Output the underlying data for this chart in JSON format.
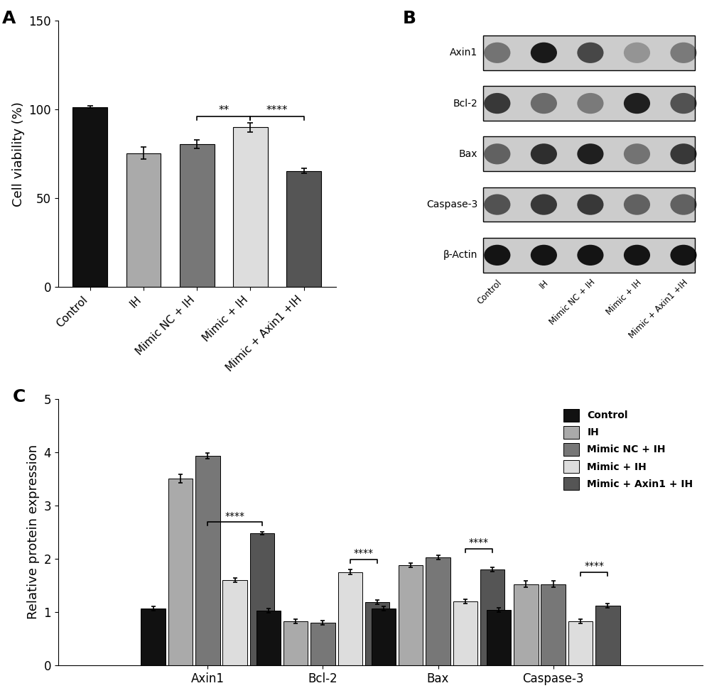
{
  "panel_A": {
    "categories": [
      "Control",
      "IH",
      "Mimic NC + IH",
      "Mimic + IH",
      "Mimic + Axin1 +IH"
    ],
    "values": [
      101.5,
      75.5,
      80.5,
      90.0,
      65.5
    ],
    "errors": [
      0.5,
      3.5,
      2.5,
      2.5,
      1.5
    ],
    "colors": [
      "#111111",
      "#aaaaaa",
      "#777777",
      "#dddddd",
      "#555555"
    ],
    "ylabel": "Cell viability (%)",
    "ylim": [
      0,
      150
    ],
    "yticks": [
      0,
      50,
      100,
      150
    ]
  },
  "panel_B": {
    "labels": [
      "Axin1",
      "Bcl-2",
      "Bax",
      "Caspase-3",
      "β-Actin"
    ],
    "x_labels": [
      "Control",
      "IH",
      "Mimic NC + IH",
      "Mimic + IH",
      "Mimic + Axin1 +IH"
    ],
    "intensities": {
      "Axin1": [
        0.55,
        0.9,
        0.72,
        0.42,
        0.52
      ],
      "Bcl-2": [
        0.78,
        0.58,
        0.52,
        0.88,
        0.68
      ],
      "Bax": [
        0.62,
        0.82,
        0.88,
        0.55,
        0.78
      ],
      "Caspase-3": [
        0.68,
        0.78,
        0.78,
        0.62,
        0.62
      ],
      "β-Actin": [
        0.92,
        0.92,
        0.92,
        0.92,
        0.92
      ]
    }
  },
  "panel_C": {
    "groups": [
      "Axin1",
      "Bcl-2",
      "Bax",
      "Caspase-3"
    ],
    "series": [
      "Control",
      "IH",
      "Mimic NC + IH",
      "Mimic + IH",
      "Mimic + Axin1 + IH"
    ],
    "colors": [
      "#111111",
      "#aaaaaa",
      "#777777",
      "#dddddd",
      "#555555"
    ],
    "values": {
      "Axin1": [
        1.07,
        3.5,
        3.93,
        1.6,
        2.48
      ],
      "Bcl-2": [
        1.03,
        0.82,
        0.8,
        1.75,
        1.18
      ],
      "Bax": [
        1.06,
        1.88,
        2.02,
        1.2,
        1.8
      ],
      "Caspase-3": [
        1.04,
        1.52,
        1.52,
        0.83,
        1.12
      ]
    },
    "errors": {
      "Axin1": [
        0.04,
        0.08,
        0.05,
        0.04,
        0.03
      ],
      "Bcl-2": [
        0.04,
        0.04,
        0.04,
        0.05,
        0.04
      ],
      "Bax": [
        0.04,
        0.04,
        0.04,
        0.04,
        0.04
      ],
      "Caspase-3": [
        0.04,
        0.06,
        0.06,
        0.04,
        0.04
      ]
    },
    "ylabel": "Relative protein expression",
    "ylim": [
      0,
      5
    ],
    "yticks": [
      0,
      1,
      2,
      3,
      4,
      5
    ],
    "brackets": [
      {
        "group_idx": 0,
        "s1": 2,
        "s2": 4,
        "y": 2.62,
        "label": "****"
      },
      {
        "group_idx": 1,
        "s1": 3,
        "s2": 4,
        "y": 1.92,
        "label": "****"
      },
      {
        "group_idx": 2,
        "s1": 3,
        "s2": 4,
        "y": 2.12,
        "label": "****"
      },
      {
        "group_idx": 3,
        "s1": 3,
        "s2": 4,
        "y": 1.68,
        "label": "****"
      }
    ]
  },
  "legend_labels": [
    "Control",
    "IH",
    "Mimic NC + IH",
    "Mimic + IH",
    "Mimic + Axin1 + IH"
  ],
  "legend_colors": [
    "#111111",
    "#aaaaaa",
    "#777777",
    "#dddddd",
    "#555555"
  ],
  "panel_labels_fontsize": 18,
  "axis_label_fontsize": 13,
  "tick_fontsize": 12
}
